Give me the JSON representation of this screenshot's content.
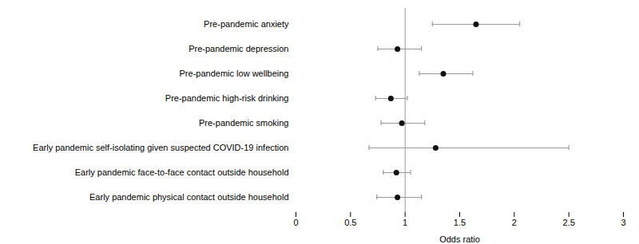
{
  "chart_data": {
    "type": "forest",
    "categories": [
      "Pre-pandemic anxiety",
      "Pre-pandemic depression",
      "Pre-pandemic low wellbeing",
      "Pre-pandemic high-risk drinking",
      "Pre-pandemic smoking",
      "Early pandemic self-isolating given suspected COVID-19 infection",
      "Early pandemic face-to-face contact outside household",
      "Early pandemic physical contact outside household"
    ],
    "values": [
      1.65,
      0.93,
      1.35,
      0.87,
      0.97,
      1.28,
      0.92,
      0.93
    ],
    "ci_low": [
      1.25,
      0.75,
      1.13,
      0.73,
      0.78,
      0.67,
      0.8,
      0.74
    ],
    "ci_high": [
      2.05,
      1.15,
      1.62,
      1.02,
      1.18,
      2.5,
      1.05,
      1.15
    ],
    "xlim": [
      0,
      3
    ],
    "xticks": [
      0,
      0.5,
      1,
      1.5,
      2,
      2.5,
      3
    ],
    "xlabel": "Odds ratio",
    "ref_line": 1,
    "color": "#111111"
  }
}
